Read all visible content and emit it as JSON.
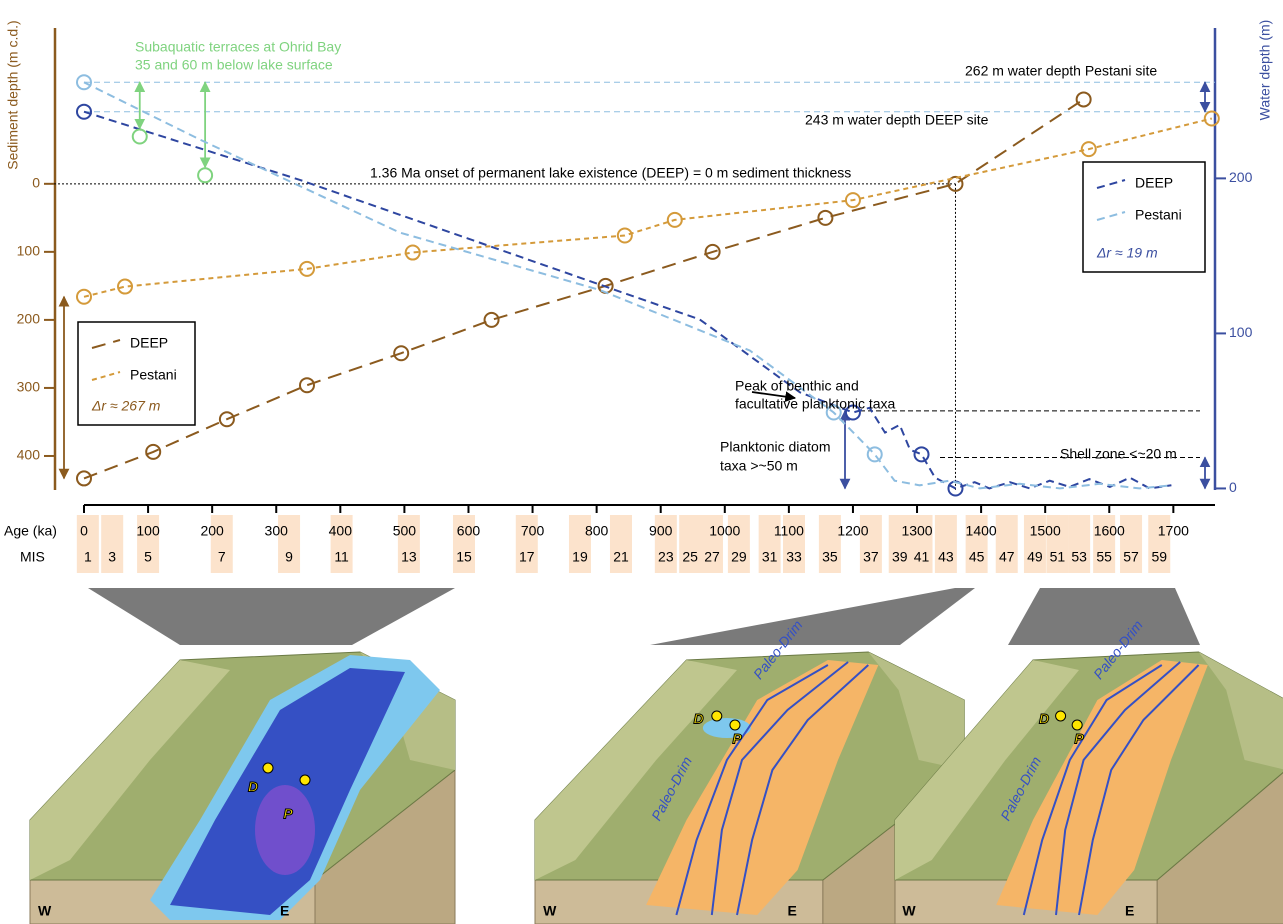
{
  "chart_data": {
    "type": "line",
    "y_label": "Sediment depth (m c.d.)",
    "y2_label": "Water depth (m)",
    "x_label": "Age (ka)",
    "mis_label": "MIS",
    "xlim": [
      0,
      1765
    ],
    "xticks": [
      0,
      100,
      200,
      300,
      400,
      500,
      600,
      700,
      800,
      900,
      1000,
      1100,
      1200,
      1300,
      1400,
      1500,
      1600,
      1700
    ],
    "ylim": [
      450,
      -229
    ],
    "yticks": [
      0,
      100,
      200,
      300,
      400
    ],
    "y2lim": [
      -1,
      297
    ],
    "y2ticks": [
      0,
      100,
      200
    ],
    "y_color": "#8B5A1E",
    "y2_color": "#3B4FA0",
    "series": [
      {
        "name": "DEEP",
        "color": "#8B5A1E",
        "axis": "y",
        "dash": "14,8",
        "x": [
          0,
          108,
          223,
          348,
          495,
          636,
          814,
          981,
          1157,
          1360,
          1560
        ],
        "values": [
          433,
          394,
          346,
          296,
          249,
          200,
          150,
          100,
          50,
          0,
          -124
        ]
      },
      {
        "name": "Pestani",
        "color": "#D49A3A",
        "axis": "y",
        "dash": "5,4",
        "x": [
          0,
          64,
          348,
          513,
          844,
          922,
          1200,
          1568,
          1760
        ],
        "values": [
          166,
          151,
          125,
          101,
          76,
          53,
          24,
          -51,
          -96
        ]
      },
      {
        "name": "DEEP",
        "color": "#2E46A0",
        "axis": "y2",
        "dash": "8,5",
        "markers": [
          0,
          5,
          10,
          12
        ],
        "x": [
          0,
          337,
          649,
          961,
          1117,
          1200,
          1226,
          1250,
          1273,
          1289,
          1307,
          1328,
          1360,
          1390,
          1413,
          1445,
          1476,
          1507,
          1538,
          1569,
          1601,
          1632,
          1663,
          1697
        ],
        "values": [
          243,
          199,
          154,
          109,
          62,
          49,
          52,
          36,
          41,
          25,
          22,
          7,
          0,
          4,
          0,
          4,
          0,
          5,
          1,
          6,
          1,
          7,
          0,
          2
        ]
      },
      {
        "name": "Pestani",
        "color": "#8DBDE0",
        "axis": "y2",
        "dash": "8,5",
        "markers": [
          0,
          5,
          6
        ],
        "x": [
          0,
          181,
          493,
          805,
          1039,
          1170,
          1234,
          1265,
          1304,
          1351,
          1398,
          1460,
          1523,
          1585,
          1647,
          1697
        ],
        "values": [
          262,
          225,
          165,
          128,
          89,
          49,
          22,
          5,
          2,
          5,
          0,
          3,
          0,
          3,
          0,
          2
        ]
      }
    ],
    "delta_r": [
      {
        "text": "Δr ≈ 267 m",
        "value": 267
      },
      {
        "text": "Δr ≈ 19 m",
        "value": 19
      }
    ],
    "annotations": {
      "terraces": {
        "lines": [
          "Subaquatic terraces at Ohrid Bay",
          "35 and 60 m below lake surface"
        ],
        "color": "#7FD37F",
        "x": [
          87,
          189
        ],
        "values": [
          227,
          202
        ]
      },
      "pestani_depth": {
        "text": "262 m water depth Pestani site",
        "value": 262
      },
      "deep_depth": {
        "text": "243 m water depth DEEP site",
        "value": 243
      },
      "onset": {
        "text": "1.36 Ma onset of permanent lake existence (DEEP) = 0 m sediment thickness",
        "x": 1360,
        "value": 0
      },
      "benthic": {
        "lines": [
          "Peak of benthic and",
          "facultative planktonic taxa"
        ]
      },
      "planktonic": {
        "lines": [
          "Planktonic diatom",
          "taxa >~50 m"
        ],
        "value": 50
      },
      "shell": {
        "text": "Shell zone <~20 m",
        "value": 20
      }
    },
    "mis": {
      "labels": [
        1,
        3,
        5,
        7,
        9,
        11,
        13,
        15,
        17,
        19,
        21,
        23,
        25,
        27,
        29,
        31,
        33,
        35,
        37,
        39,
        41,
        43,
        45,
        47,
        49,
        51,
        53,
        55,
        57,
        59
      ],
      "ages": [
        6,
        44,
        100,
        215,
        320,
        402,
        507,
        593,
        691,
        774,
        838,
        908,
        946,
        980,
        1022,
        1070,
        1108,
        1164,
        1228,
        1273,
        1307,
        1345,
        1393,
        1440,
        1484,
        1519,
        1553,
        1592,
        1634,
        1678
      ]
    }
  },
  "diagrams": [
    {
      "west": "W",
      "east": "E",
      "site_d": "D",
      "site_p": "P"
    },
    {
      "west": "W",
      "east": "E",
      "site_d": "D",
      "site_p": "P",
      "rivers": [
        "Paleo-Drim",
        "Paleo-Drim"
      ]
    },
    {
      "west": "W",
      "east": "E",
      "site_d": "D",
      "site_p": "P",
      "rivers": [
        "Paleo-Drim",
        "Paleo-Drim"
      ]
    }
  ]
}
